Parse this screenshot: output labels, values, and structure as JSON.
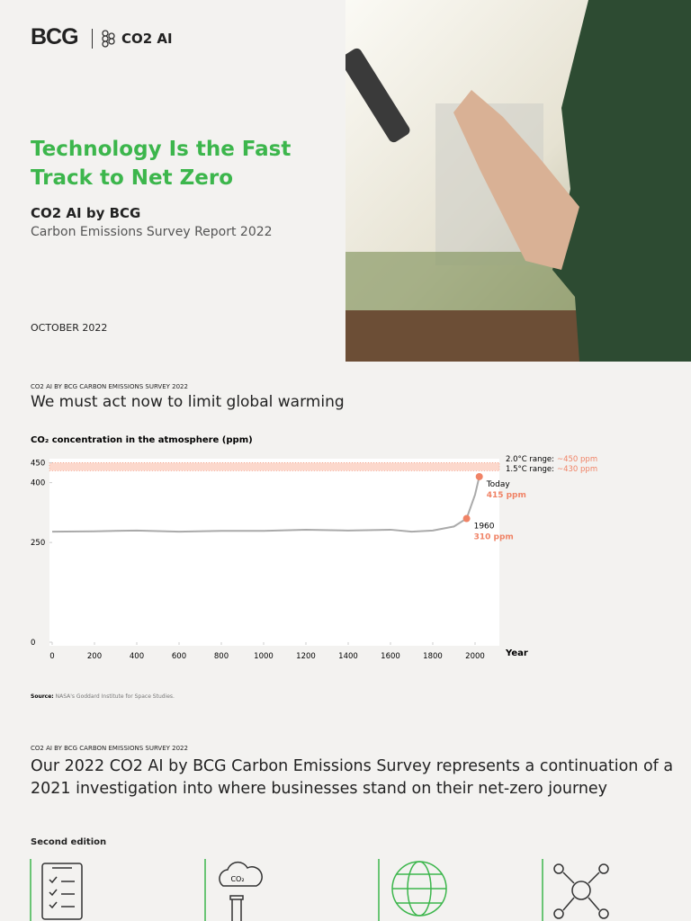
{
  "header": {
    "logo": "BCG",
    "partner": "CO2 AI"
  },
  "cover": {
    "title": "Technology Is the Fast Track to Net Zero",
    "subtitle": "CO2 AI by BCG",
    "report": "Carbon Emissions Survey Report 2022",
    "date": "OCTOBER 2022"
  },
  "section1": {
    "label": "CO2 AI BY BCG CARBON EMISSIONS SURVEY 2022",
    "heading": "We must act now to limit global warming",
    "source_label": "Source:",
    "source_text": "NASA's Goddard Institute for Space Studies."
  },
  "chart_data": {
    "type": "line",
    "title": "CO₂ concentration in the atmosphere (ppm)",
    "x_label": "Year",
    "x": [
      0,
      200,
      400,
      600,
      800,
      1000,
      1200,
      1400,
      1600,
      1700,
      1800,
      1900,
      1960,
      2000,
      2020
    ],
    "values": [
      277,
      278,
      280,
      277,
      279,
      279,
      282,
      280,
      282,
      277,
      280,
      290,
      310,
      370,
      415
    ],
    "value_labels": [
      null,
      null,
      null,
      null,
      null,
      null,
      null,
      null,
      null,
      null,
      null,
      null,
      "310 ppm",
      null,
      "415 ppm"
    ],
    "annotations": [
      "1960",
      "Today"
    ],
    "color": "#aaaaaa",
    "highlight_color": "#f08366",
    "bands": [
      {
        "label": "2.0°C range:",
        "value_label": "~450 ppm",
        "value": 450
      },
      {
        "label": "1.5°C range:",
        "value_label": "~430 ppm",
        "value": 430
      }
    ],
    "xlim": [
      0,
      2100
    ],
    "ylim": [
      0,
      460
    ],
    "xticks": [
      0,
      200,
      400,
      600,
      800,
      1000,
      1200,
      1400,
      1600,
      1800,
      2000
    ],
    "yticks": [
      0,
      250,
      400,
      450
    ]
  },
  "section2": {
    "label": "CO2 AI BY BCG CARBON EMISSIONS SURVEY 2022",
    "heading": "Our 2022 CO2 AI by BCG Carbon Emissions Survey represents a continuation of a 2021 investigation into where businesses stand on their net-zero journey",
    "edition": "Second edition",
    "icon_text": "CO₂"
  }
}
